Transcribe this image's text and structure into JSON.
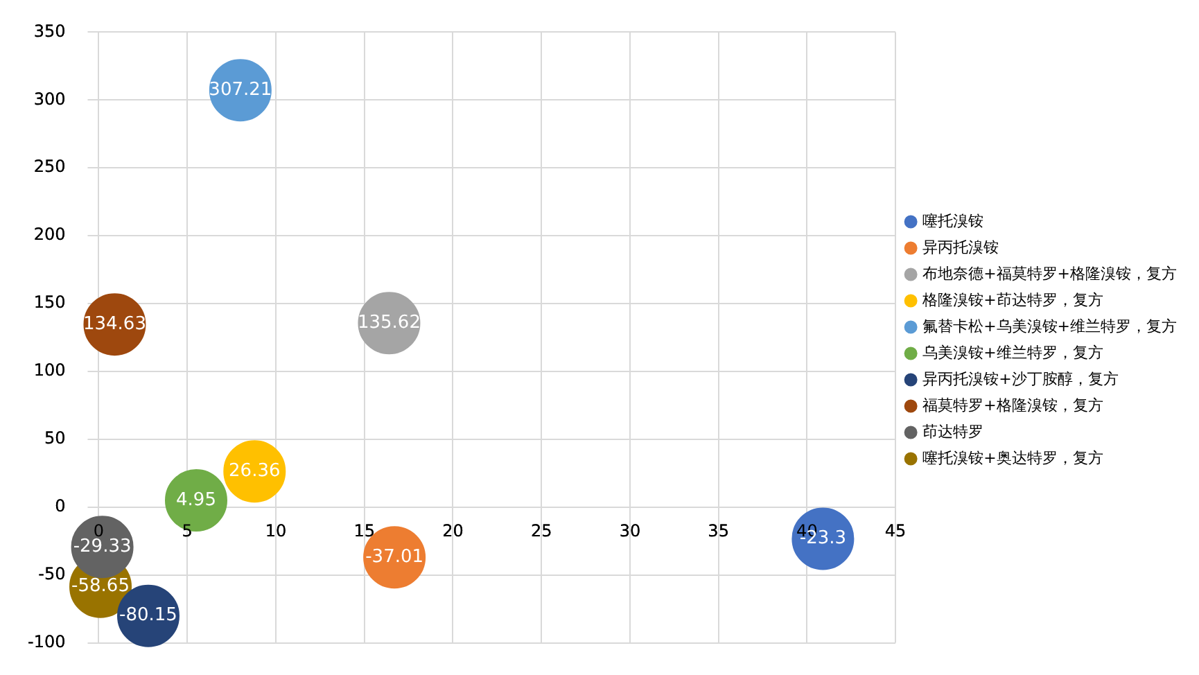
{
  "chart_data": {
    "type": "bubble",
    "xlim": [
      0,
      45
    ],
    "xticks": [
      0,
      5,
      10,
      15,
      20,
      25,
      30,
      35,
      40,
      45
    ],
    "ylim": [
      -100,
      350
    ],
    "yticks": [
      -100,
      -50,
      0,
      50,
      100,
      150,
      200,
      250,
      300,
      350
    ],
    "grid": true,
    "legend": "right",
    "data_labels": true,
    "marker": "circle",
    "series": [
      {
        "name": "噻托溴铵",
        "color": "#4472c4",
        "x": [
          40.9
        ],
        "values": [
          -23.3
        ],
        "sizes": [
          1
        ]
      },
      {
        "name": "异丙托溴铵",
        "color": "#ed7d31",
        "x": [
          16.7
        ],
        "values": [
          -37.01
        ],
        "sizes": [
          1
        ]
      },
      {
        "name": "布地奈德+福莫特罗+格隆溴铵，复方",
        "color": "#a5a5a5",
        "x": [
          16.4
        ],
        "values": [
          135.62
        ],
        "sizes": [
          1
        ]
      },
      {
        "name": "格隆溴铵+茚达特罗，复方",
        "color": "#ffc000",
        "x": [
          8.8
        ],
        "values": [
          26.36
        ],
        "sizes": [
          1
        ]
      },
      {
        "name": "氟替卡松+乌美溴铵+维兰特罗，复方",
        "color": "#5b9bd5",
        "x": [
          8.0
        ],
        "values": [
          307.21
        ],
        "sizes": [
          1
        ]
      },
      {
        "name": "乌美溴铵+维兰特罗，复方",
        "color": "#70ad47",
        "x": [
          5.5
        ],
        "values": [
          4.95
        ],
        "sizes": [
          1
        ]
      },
      {
        "name": "异丙托溴铵+沙丁胺醇，复方",
        "color": "#264478",
        "x": [
          2.8
        ],
        "values": [
          -80.15
        ],
        "sizes": [
          1
        ]
      },
      {
        "name": "福莫特罗+格隆溴铵，复方",
        "color": "#9e480e",
        "x": [
          0.9
        ],
        "values": [
          134.63
        ],
        "sizes": [
          1
        ]
      },
      {
        "name": "茚达特罗",
        "color": "#636363",
        "x": [
          0.2
        ],
        "values": [
          -29.33
        ],
        "sizes": [
          1
        ]
      },
      {
        "name": "噻托溴铵+奥达特罗，复方",
        "color": "#997300",
        "x": [
          0.1
        ],
        "values": [
          -58.65
        ],
        "sizes": [
          1
        ]
      }
    ]
  }
}
